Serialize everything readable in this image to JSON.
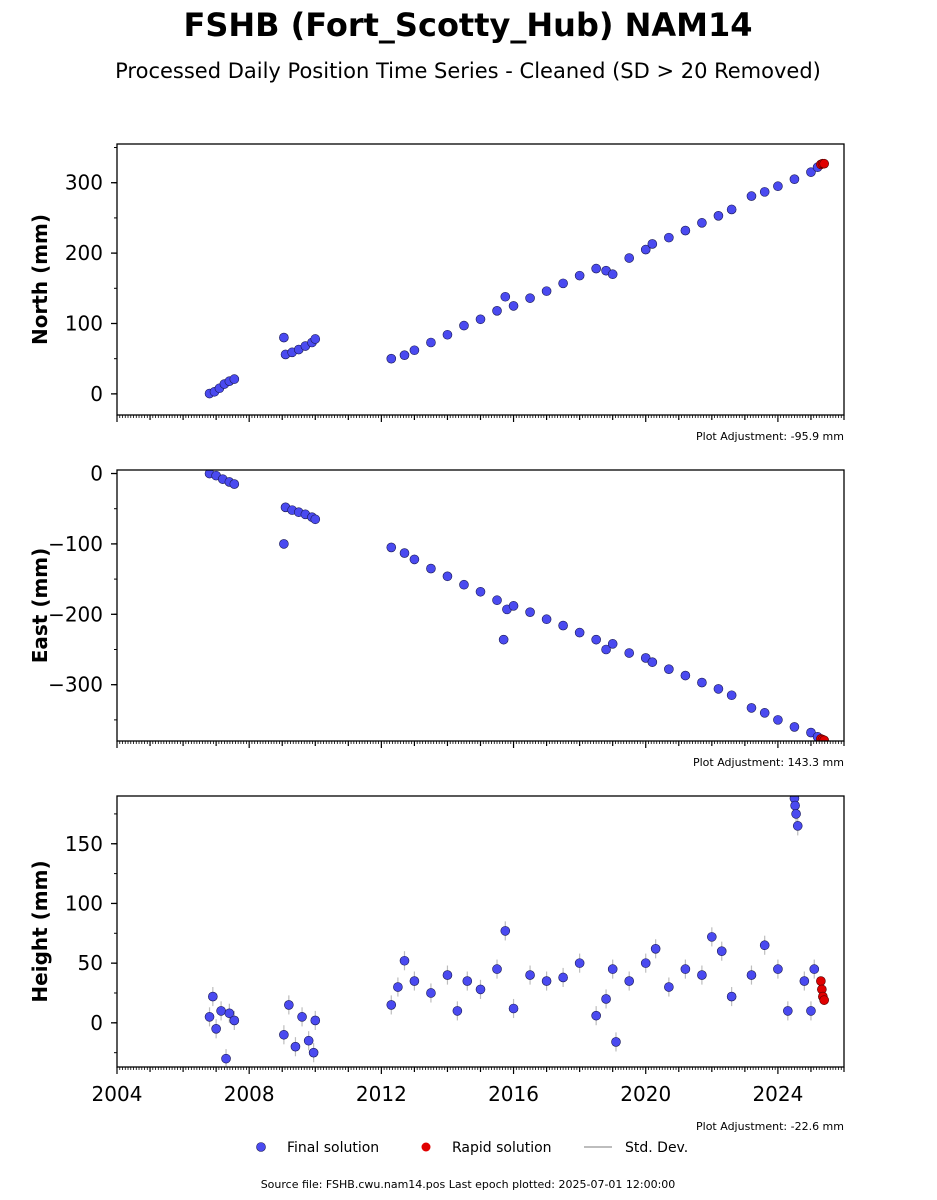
{
  "title": "FSHB (Fort_Scotty_Hub) NAM14",
  "subtitle": "Processed Daily Position Time Series - Cleaned (SD > 20 Removed)",
  "legend": {
    "final": "Final solution",
    "rapid": "Rapid solution",
    "std": "Std. Dev."
  },
  "source_note": "Source file: FSHB.cwu.nam14.pos  Last epoch plotted: 2025-07-01 12:00:00",
  "colors": {
    "final": "#4a4af0",
    "final_edge": "#1a1a55",
    "rapid": "#e00000",
    "std": "#bdbdbd"
  },
  "chart_data": [
    {
      "type": "scatter",
      "ylabel": "North (mm)",
      "adjustment": "Plot Adjustment: -95.9 mm",
      "xlim": [
        2004.0,
        2026.0
      ],
      "ylim": [
        -30,
        355
      ],
      "yticks": [
        0,
        100,
        200,
        300
      ],
      "ytick_labels": [
        "0",
        "100",
        "200",
        "300"
      ],
      "final_points": [
        [
          2006.8,
          0.5
        ],
        [
          2006.95,
          3
        ],
        [
          2007.1,
          8
        ],
        [
          2007.25,
          14
        ],
        [
          2007.4,
          18
        ],
        [
          2007.55,
          21
        ],
        [
          2009.05,
          80
        ],
        [
          2009.1,
          56
        ],
        [
          2009.3,
          59
        ],
        [
          2009.5,
          63
        ],
        [
          2009.7,
          68
        ],
        [
          2009.9,
          73
        ],
        [
          2010.0,
          78
        ],
        [
          2012.3,
          50
        ],
        [
          2012.7,
          55
        ],
        [
          2013.0,
          62
        ],
        [
          2013.5,
          73
        ],
        [
          2014.0,
          84
        ],
        [
          2014.5,
          97
        ],
        [
          2015.0,
          106
        ],
        [
          2015.5,
          118
        ],
        [
          2015.75,
          138
        ],
        [
          2016.0,
          125
        ],
        [
          2016.5,
          136
        ],
        [
          2017.0,
          146
        ],
        [
          2017.5,
          157
        ],
        [
          2018.0,
          168
        ],
        [
          2018.5,
          178
        ],
        [
          2018.8,
          175
        ],
        [
          2019.0,
          170
        ],
        [
          2019.5,
          193
        ],
        [
          2020.0,
          205
        ],
        [
          2020.2,
          213
        ],
        [
          2020.7,
          222
        ],
        [
          2021.2,
          232
        ],
        [
          2021.7,
          243
        ],
        [
          2022.2,
          253
        ],
        [
          2022.6,
          262
        ],
        [
          2023.2,
          281
        ],
        [
          2023.6,
          287
        ],
        [
          2024.0,
          295
        ],
        [
          2024.5,
          305
        ],
        [
          2025.0,
          315
        ],
        [
          2025.2,
          322
        ]
      ],
      "rapid_points": [
        [
          2025.3,
          326
        ],
        [
          2025.35,
          327
        ],
        [
          2025.4,
          327
        ]
      ]
    },
    {
      "type": "scatter",
      "ylabel": "East (mm)",
      "adjustment": "Plot Adjustment: 143.3 mm",
      "xlim": [
        2004.0,
        2026.0
      ],
      "ylim": [
        -380,
        5
      ],
      "yticks": [
        0,
        -100,
        -200,
        -300
      ],
      "ytick_labels": [
        "0",
        "−100",
        "−200",
        "−300"
      ],
      "final_points": [
        [
          2006.8,
          0
        ],
        [
          2007.0,
          -3
        ],
        [
          2007.2,
          -8
        ],
        [
          2007.4,
          -12
        ],
        [
          2007.55,
          -15
        ],
        [
          2009.05,
          -100
        ],
        [
          2009.1,
          -48
        ],
        [
          2009.3,
          -52
        ],
        [
          2009.5,
          -55
        ],
        [
          2009.7,
          -58
        ],
        [
          2009.9,
          -62
        ],
        [
          2010.0,
          -65
        ],
        [
          2012.3,
          -105
        ],
        [
          2012.7,
          -113
        ],
        [
          2013.0,
          -122
        ],
        [
          2013.5,
          -135
        ],
        [
          2014.0,
          -146
        ],
        [
          2014.5,
          -158
        ],
        [
          2015.0,
          -168
        ],
        [
          2015.5,
          -180
        ],
        [
          2015.7,
          -236
        ],
        [
          2015.8,
          -193
        ],
        [
          2016.0,
          -188
        ],
        [
          2016.5,
          -197
        ],
        [
          2017.0,
          -207
        ],
        [
          2017.5,
          -216
        ],
        [
          2018.0,
          -226
        ],
        [
          2018.5,
          -236
        ],
        [
          2018.8,
          -250
        ],
        [
          2019.0,
          -242
        ],
        [
          2019.5,
          -255
        ],
        [
          2020.0,
          -262
        ],
        [
          2020.2,
          -268
        ],
        [
          2020.7,
          -278
        ],
        [
          2021.2,
          -287
        ],
        [
          2021.7,
          -297
        ],
        [
          2022.2,
          -306
        ],
        [
          2022.6,
          -315
        ],
        [
          2023.2,
          -333
        ],
        [
          2023.6,
          -340
        ],
        [
          2024.0,
          -350
        ],
        [
          2024.5,
          -360
        ],
        [
          2025.0,
          -368
        ],
        [
          2025.2,
          -374
        ]
      ],
      "rapid_points": [
        [
          2025.3,
          -377
        ],
        [
          2025.35,
          -378
        ],
        [
          2025.4,
          -379
        ]
      ]
    },
    {
      "type": "scatter",
      "ylabel": "Height (mm)",
      "adjustment": "Plot Adjustment: -22.6 mm",
      "xlim": [
        2004.0,
        2026.0
      ],
      "ylim": [
        -37,
        190
      ],
      "yticks": [
        0,
        50,
        100,
        150
      ],
      "ytick_labels": [
        "0",
        "50",
        "100",
        "150"
      ],
      "xticks": [
        2004,
        2008,
        2012,
        2016,
        2020,
        2024
      ],
      "xtick_labels": [
        "2004",
        "2008",
        "2012",
        "2016",
        "2020",
        "2024"
      ],
      "final_points": [
        [
          2006.8,
          5
        ],
        [
          2006.9,
          22
        ],
        [
          2007.0,
          -5
        ],
        [
          2007.15,
          10
        ],
        [
          2007.3,
          -30
        ],
        [
          2007.4,
          8
        ],
        [
          2007.55,
          2
        ],
        [
          2009.05,
          -10
        ],
        [
          2009.2,
          15
        ],
        [
          2009.4,
          -20
        ],
        [
          2009.6,
          5
        ],
        [
          2009.8,
          -15
        ],
        [
          2009.95,
          -25
        ],
        [
          2010.0,
          2
        ],
        [
          2012.3,
          15
        ],
        [
          2012.5,
          30
        ],
        [
          2012.7,
          52
        ],
        [
          2013.0,
          35
        ],
        [
          2013.5,
          25
        ],
        [
          2014.0,
          40
        ],
        [
          2014.3,
          10
        ],
        [
          2014.6,
          35
        ],
        [
          2015.0,
          28
        ],
        [
          2015.5,
          45
        ],
        [
          2015.75,
          77
        ],
        [
          2016.0,
          12
        ],
        [
          2016.5,
          40
        ],
        [
          2017.0,
          35
        ],
        [
          2017.5,
          38
        ],
        [
          2018.0,
          50
        ],
        [
          2018.5,
          6
        ],
        [
          2018.8,
          20
        ],
        [
          2019.0,
          45
        ],
        [
          2019.1,
          -16
        ],
        [
          2019.5,
          35
        ],
        [
          2020.0,
          50
        ],
        [
          2020.3,
          62
        ],
        [
          2020.7,
          30
        ],
        [
          2021.2,
          45
        ],
        [
          2021.7,
          40
        ],
        [
          2022.0,
          72
        ],
        [
          2022.3,
          60
        ],
        [
          2022.6,
          22
        ],
        [
          2023.2,
          40
        ],
        [
          2023.6,
          65
        ],
        [
          2024.0,
          45
        ],
        [
          2024.3,
          10
        ],
        [
          2024.5,
          188
        ],
        [
          2024.52,
          182
        ],
        [
          2024.55,
          175
        ],
        [
          2024.6,
          165
        ],
        [
          2024.8,
          35
        ],
        [
          2025.0,
          10
        ],
        [
          2025.1,
          45
        ]
      ],
      "rapid_points": [
        [
          2025.3,
          35
        ],
        [
          2025.33,
          28
        ],
        [
          2025.36,
          22
        ],
        [
          2025.4,
          19
        ]
      ]
    }
  ]
}
